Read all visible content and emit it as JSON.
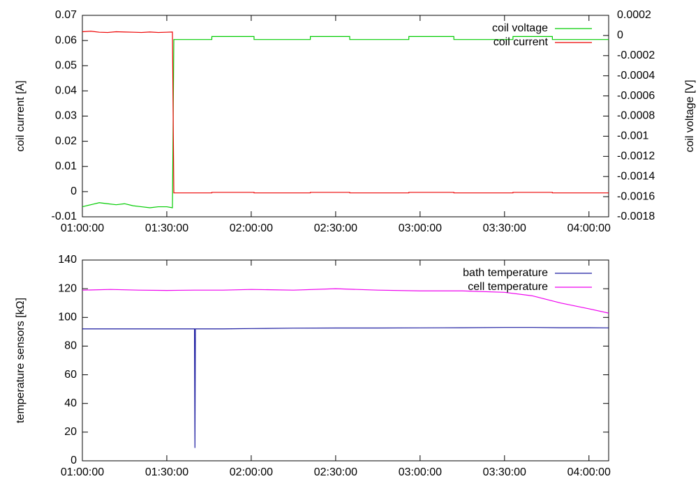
{
  "chart_data": [
    {
      "type": "line",
      "ylabel": "coil current [A]",
      "y2label": "coil voltage [V]",
      "x": [
        "01:00:00",
        "01:03:00",
        "01:06:00",
        "01:09:00",
        "01:12:00",
        "01:15:00",
        "01:18:00",
        "01:21:00",
        "01:24:00",
        "01:27:00",
        "01:30:00",
        "01:32:00",
        "01:32:30",
        "01:46:00",
        "01:46:00",
        "02:01:00",
        "02:01:00",
        "02:21:00",
        "02:21:00",
        "02:35:00",
        "02:35:00",
        "02:56:00",
        "02:56:00",
        "03:12:00",
        "03:12:00",
        "03:33:00",
        "03:33:00",
        "03:47:00",
        "03:47:00",
        "04:07:00"
      ],
      "series": [
        {
          "name": "coil voltage",
          "color": "#00cc00",
          "axis": "y2",
          "values": [
            -0.0017,
            -0.00168,
            -0.00166,
            -0.00167,
            -0.00168,
            -0.00167,
            -0.00169,
            -0.0017,
            -0.00171,
            -0.0017,
            -0.0017,
            -0.00171,
            -4e-05,
            -4e-05,
            -1e-05,
            -1e-05,
            -4e-05,
            -4e-05,
            -1e-05,
            -1e-05,
            -4e-05,
            -4e-05,
            -1e-05,
            -1e-05,
            -4e-05,
            -4e-05,
            -1e-05,
            -1e-05,
            -4e-05,
            -4e-05
          ]
        },
        {
          "name": "coil current",
          "color": "#ee0000",
          "values": [
            0.0635,
            0.0637,
            0.0633,
            0.0632,
            0.0635,
            0.0634,
            0.0633,
            0.0632,
            0.0634,
            0.0632,
            0.0633,
            0.0634,
            -0.0005,
            -0.0005,
            -0.0003,
            -0.0003,
            -0.0005,
            -0.0005,
            -0.0003,
            -0.0003,
            -0.0005,
            -0.0005,
            -0.0003,
            -0.0003,
            -0.0005,
            -0.0005,
            -0.0003,
            -0.0003,
            -0.0005,
            -0.0005
          ]
        }
      ],
      "xlim": [
        "01:00:00",
        "04:07:00"
      ],
      "xticks": [
        "01:00:00",
        "01:30:00",
        "02:00:00",
        "02:30:00",
        "03:00:00",
        "03:30:00",
        "04:00:00"
      ],
      "ylim": [
        -0.01,
        0.07
      ],
      "yticks": [
        -0.01,
        0,
        0.01,
        0.02,
        0.03,
        0.04,
        0.05,
        0.06,
        0.07
      ],
      "y2lim": [
        -0.0018,
        0.0002
      ],
      "y2ticks": [
        -0.0018,
        -0.0016,
        -0.0014,
        -0.0012,
        -0.001,
        -0.0008,
        -0.0006,
        -0.0004,
        -0.0002,
        0,
        0.0002
      ],
      "legend": "upper right"
    },
    {
      "type": "line",
      "ylabel": "temperature sensors [kΩ]",
      "x": [
        "01:00:00",
        "01:10:00",
        "01:20:00",
        "01:30:00",
        "01:39:50",
        "01:40:00",
        "01:40:10",
        "01:50:00",
        "02:00:00",
        "02:15:00",
        "02:30:00",
        "02:45:00",
        "03:00:00",
        "03:15:00",
        "03:30:00",
        "03:40:00",
        "03:50:00",
        "04:00:00",
        "04:07:00"
      ],
      "series": [
        {
          "name": "bath temperature",
          "color": "#1a1aa0",
          "values": [
            92,
            92,
            92,
            92,
            92,
            9,
            92,
            92,
            92.2,
            92.5,
            92.6,
            92.6,
            92.7,
            92.8,
            93,
            93,
            92.8,
            92.8,
            92.7
          ]
        },
        {
          "name": "cell temperature",
          "color": "#ee00ee",
          "values": [
            119,
            119.5,
            119,
            118.8,
            119,
            119,
            119,
            119,
            119.5,
            119,
            120,
            119,
            118.5,
            118.5,
            117.5,
            115,
            110,
            106,
            103
          ]
        }
      ],
      "xlim": [
        "01:00:00",
        "04:07:00"
      ],
      "xticks": [
        "01:00:00",
        "01:30:00",
        "02:00:00",
        "02:30:00",
        "03:00:00",
        "03:30:00",
        "04:00:00"
      ],
      "ylim": [
        0,
        140
      ],
      "yticks": [
        0,
        20,
        40,
        60,
        80,
        100,
        120,
        140
      ],
      "legend": "upper right"
    }
  ]
}
